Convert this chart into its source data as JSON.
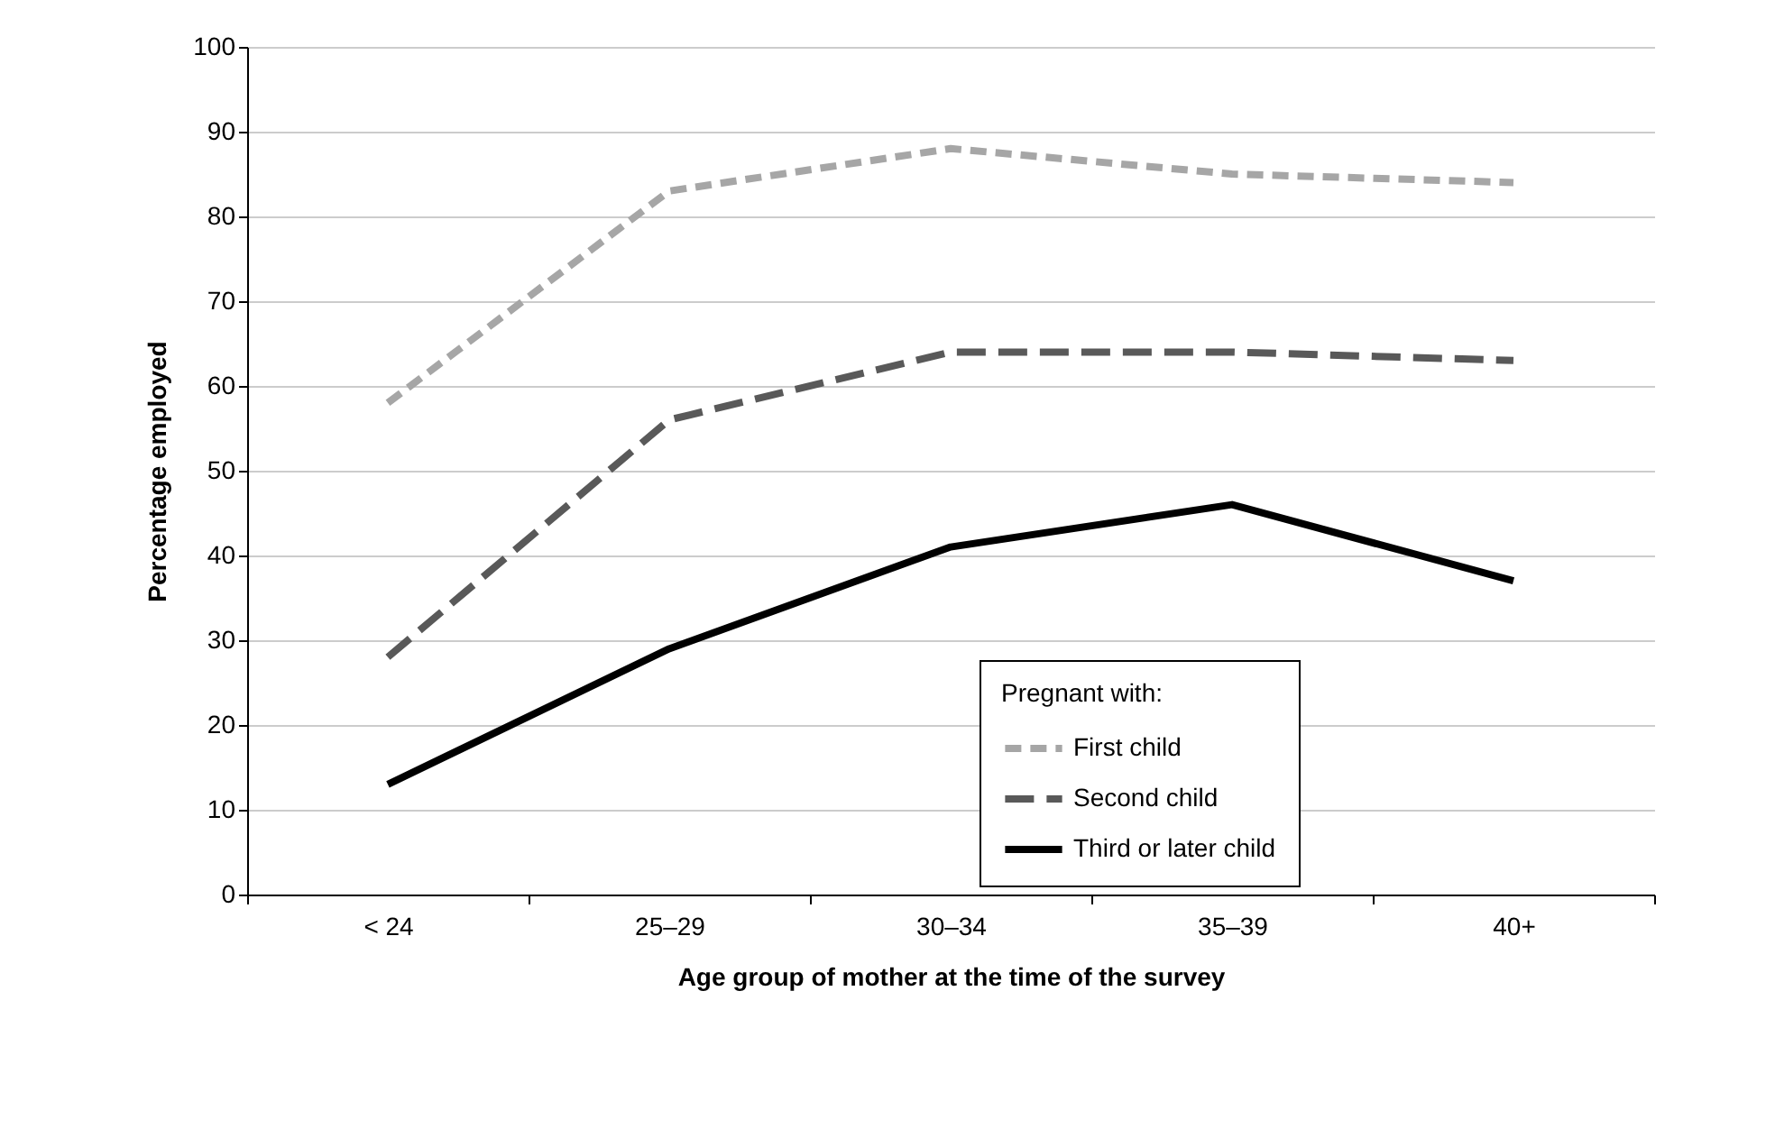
{
  "chart_data": {
    "type": "line",
    "xlabel": "Age group of mother at the time of the survey",
    "ylabel": "Percentage employed",
    "legend_title": "Pregnant with:",
    "categories": [
      "< 24",
      "25–29",
      "30–34",
      "35–39",
      "40+"
    ],
    "series": [
      {
        "name": "First child",
        "color": "#a6a6a6",
        "line_style": "dashed",
        "values": [
          58,
          83,
          88,
          85,
          84
        ]
      },
      {
        "name": "Second child",
        "color": "#595959",
        "line_style": "dashed",
        "values": [
          28,
          56,
          64,
          64,
          63
        ]
      },
      {
        "name": "Third or later child",
        "color": "#000000",
        "line_style": "solid",
        "values": [
          13,
          29,
          41,
          46,
          37
        ]
      }
    ],
    "ylim": [
      0,
      100
    ],
    "yticks": [
      0,
      10,
      20,
      30,
      40,
      50,
      60,
      70,
      80,
      90,
      100
    ],
    "grid": "y",
    "legend": "bottom right",
    "marker": "none"
  }
}
